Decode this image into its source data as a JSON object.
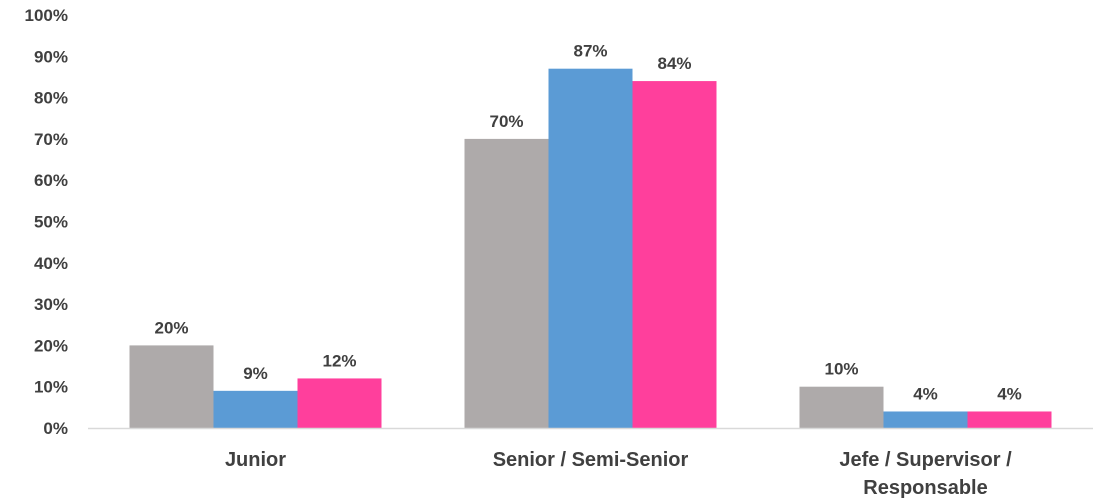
{
  "chart_data": {
    "type": "bar",
    "title": "",
    "xlabel": "",
    "ylabel": "",
    "ylim": [
      0,
      100
    ],
    "y_ticks": [
      "0%",
      "10%",
      "20%",
      "30%",
      "40%",
      "50%",
      "60%",
      "70%",
      "80%",
      "90%",
      "100%"
    ],
    "grid": false,
    "legend": "none",
    "categories": [
      [
        "Junior"
      ],
      [
        "Senior / Semi-Senior"
      ],
      [
        "Jefe / Supervisor /",
        "Responsable"
      ]
    ],
    "series": [
      {
        "color": "#aeaaaa",
        "values": [
          20,
          70,
          10
        ],
        "labels": [
          "20%",
          "70%",
          "10%"
        ]
      },
      {
        "color": "#5b9bd5",
        "values": [
          9,
          87,
          4
        ],
        "labels": [
          "9%",
          "87%",
          "4%"
        ]
      },
      {
        "color": "#ff3f9c",
        "values": [
          12,
          84,
          4
        ],
        "labels": [
          "12%",
          "84%",
          "4%"
        ]
      }
    ]
  }
}
